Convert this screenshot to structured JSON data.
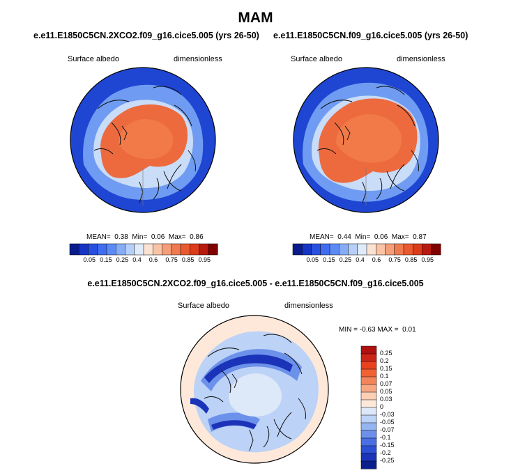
{
  "figure": {
    "title": "MAM"
  },
  "panels": [
    {
      "title": "e.e11.E1850C5CN.2XCO2.f09_g16.cice5.005 (yrs 26-50)",
      "left_label": "Surface albedo",
      "right_label": "dimensionless",
      "stats": {
        "mean_label": "MEAN=",
        "mean": "0.38",
        "min_label": "Min=",
        "min": "0.06",
        "max_label": "Max=",
        "max": "0.86"
      }
    },
    {
      "title": "e.e11.E1850C5CN.f09_g16.cice5.005 (yrs 26-50)",
      "left_label": "Surface albedo",
      "right_label": "dimensionless",
      "stats": {
        "mean_label": "MEAN=",
        "mean": "0.44",
        "min_label": "Min=",
        "min": "0.06",
        "max_label": "Max=",
        "max": "0.87"
      }
    },
    {
      "title": "e.e11.E1850C5CN.2XCO2.f09_g16.cice5.005 - e.e11.E1850C5CN.f09_g16.cice5.005",
      "left_label": "Surface albedo",
      "right_label": "dimensionless",
      "stats": {
        "min_label": "MIN =",
        "min": "-0.63",
        "max_label": "MAX =",
        "max": "0.01"
      }
    }
  ],
  "colorbars": {
    "absolute": {
      "colors": [
        "#0a1c8c",
        "#1635c4",
        "#2850e0",
        "#3f6cf0",
        "#5c8af5",
        "#86acf7",
        "#b6cff8",
        "#e0ebfa",
        "#fbe3d4",
        "#f9c4a6",
        "#f69e79",
        "#f07a50",
        "#e95a30",
        "#dc3c1a",
        "#b81a0f",
        "#800000"
      ],
      "ticks": [
        "0.05",
        "0.15",
        "0.25",
        "0.4",
        "0.6",
        "0.75",
        "0.85",
        "0.95"
      ]
    },
    "difference": {
      "colors": [
        "#b01010",
        "#cc2418",
        "#e8431e",
        "#f06232",
        "#f4855a",
        "#f7a882",
        "#fbcfb4",
        "#fde8da",
        "#dde8f8",
        "#bcd2f6",
        "#95b5f1",
        "#6c91ea",
        "#4a6fe3",
        "#2c4fd6",
        "#1b33b8",
        "#0a1f8c"
      ],
      "ticks": [
        "0.25",
        "0.2",
        "0.15",
        "0.1",
        "0.07",
        "0.05",
        "0.03",
        "0",
        "-0.03",
        "-0.05",
        "-0.07",
        "-0.1",
        "-0.15",
        "-0.2",
        "-0.25"
      ]
    }
  }
}
